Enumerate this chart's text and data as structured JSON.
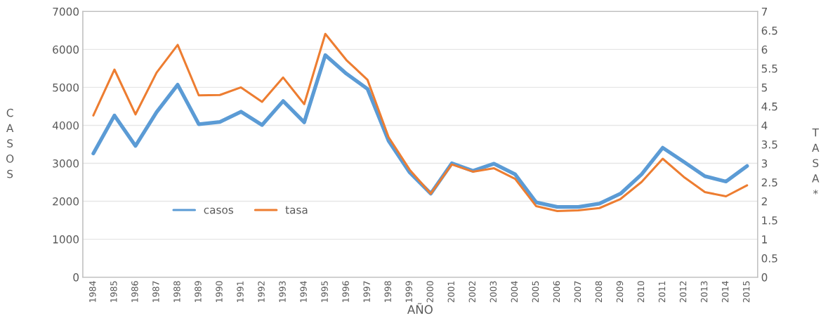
{
  "chart_data": {
    "type": "line",
    "xlabel": "AÑO",
    "ylabel": "CASOS",
    "y2label": "TASA*",
    "categories": [
      "1984",
      "1985",
      "1986",
      "1987",
      "1988",
      "1989",
      "1990",
      "1991",
      "1992",
      "1993",
      "1994",
      "1995",
      "1996",
      "1997",
      "1998",
      "1999",
      "2000",
      "2001",
      "2002",
      "2003",
      "2004",
      "2005",
      "2006",
      "2007",
      "2008",
      "2009",
      "2010",
      "2011",
      "2012",
      "2013",
      "2014",
      "2015"
    ],
    "series": [
      {
        "name": "casos",
        "color": "#5b9bd5",
        "values": [
          3260,
          4260,
          3460,
          4350,
          5070,
          4030,
          4090,
          4360,
          4010,
          4640,
          4080,
          5850,
          5360,
          4960,
          3590,
          2760,
          2200,
          3000,
          2800,
          2990,
          2710,
          1970,
          1850,
          1850,
          1940,
          2200,
          2710,
          3410,
          3040,
          2660,
          2520,
          2930
        ]
      },
      {
        "name": "tasa",
        "color": "#ed7d31",
        "axis": "y2",
        "values": [
          4.26,
          5.47,
          4.29,
          5.39,
          6.12,
          4.79,
          4.8,
          5.0,
          4.62,
          5.26,
          4.56,
          6.41,
          5.72,
          5.2,
          3.69,
          2.83,
          2.2,
          2.97,
          2.78,
          2.87,
          2.59,
          1.87,
          1.74,
          1.76,
          1.82,
          2.06,
          2.51,
          3.12,
          2.64,
          2.24,
          2.13,
          2.42
        ]
      }
    ],
    "ylim": [
      0,
      7000
    ],
    "yticks": [
      0,
      1000,
      2000,
      3000,
      4000,
      5000,
      6000,
      7000
    ],
    "y2lim": [
      0,
      7
    ],
    "y2ticks": [
      0,
      0.5,
      1,
      1.5,
      2,
      2.5,
      3,
      3.5,
      4,
      4.5,
      5,
      5.5,
      6,
      6.5,
      7
    ],
    "grid": "y",
    "legend": "left",
    "marker": "none",
    "line_style": "solid"
  }
}
